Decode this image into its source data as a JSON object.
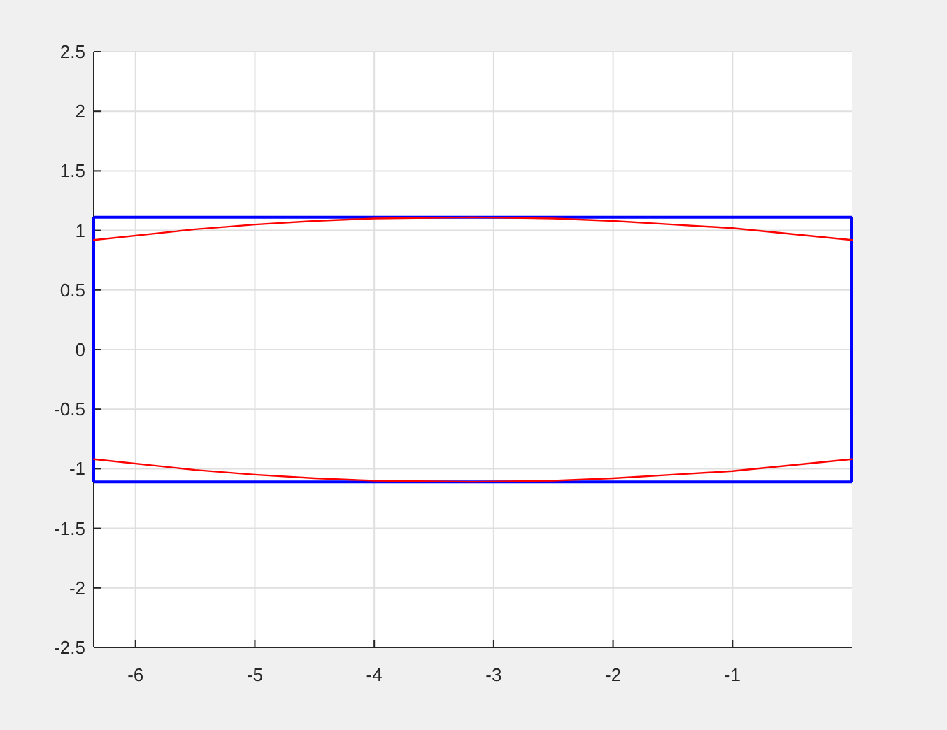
{
  "chart_data": {
    "type": "line",
    "xlim": [
      -6.35,
      0
    ],
    "ylim": [
      -2.5,
      2.5
    ],
    "xticks": [
      -6,
      -5,
      -4,
      -3,
      -2,
      -1
    ],
    "yticks": [
      -2.5,
      -2,
      -1.5,
      -1,
      -0.5,
      0,
      0.5,
      1,
      1.5,
      2,
      2.5
    ],
    "grid": true,
    "marker": "none",
    "line_style": "solid",
    "ref_lines": [
      {
        "axis": "y",
        "value": 1.11,
        "color": "#0000ff"
      },
      {
        "axis": "y",
        "value": -1.11,
        "color": "#0000ff"
      },
      {
        "axis": "x",
        "value": -6.35,
        "color": "#0000ff"
      },
      {
        "axis": "x",
        "value": 0,
        "color": "#0000ff"
      }
    ],
    "series": [
      {
        "color": "#ff0000",
        "x": [
          -6.35,
          -5.5,
          -5,
          -4.5,
          -4,
          -3.175,
          -2.5,
          -2,
          -1.5,
          -1,
          -0.5,
          0
        ],
        "values": [
          0.92,
          1.01,
          1.05,
          1.08,
          1.1,
          1.11,
          1.1,
          1.08,
          1.05,
          1.02,
          0.97,
          0.92
        ]
      },
      {
        "color": "#ff0000",
        "x": [
          -6.35,
          -5.5,
          -5,
          -4.5,
          -4,
          -3.175,
          -2.5,
          -2,
          -1.5,
          -1,
          -0.5,
          0
        ],
        "values": [
          -0.92,
          -1.01,
          -1.05,
          -1.08,
          -1.1,
          -1.11,
          -1.1,
          -1.08,
          -1.05,
          -1.02,
          -0.97,
          -0.92
        ]
      }
    ]
  }
}
